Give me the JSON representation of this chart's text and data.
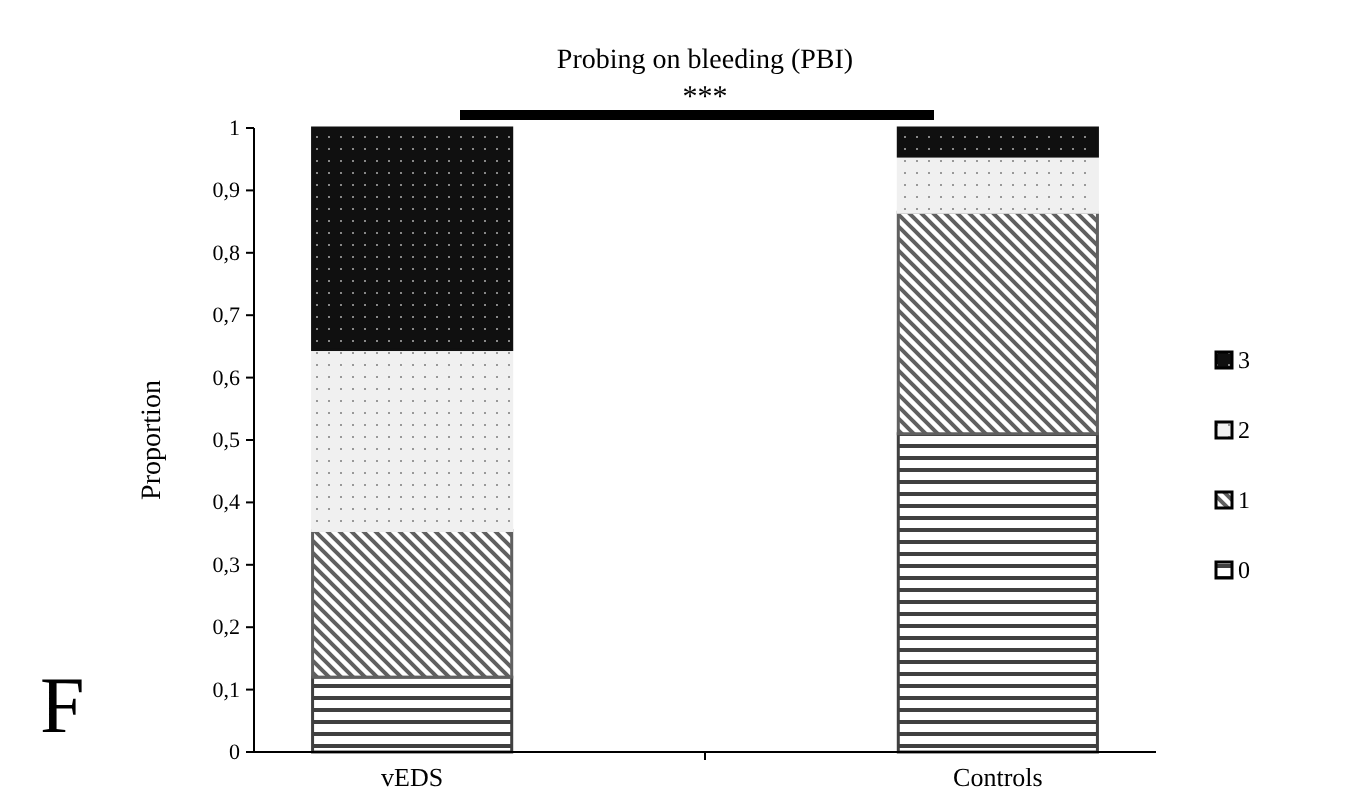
{
  "chart_data": {
    "type": "bar",
    "title": "Probing on bleeding (PBI)",
    "ylabel": "Proportion",
    "categories": [
      "vEDS",
      "Controls"
    ],
    "stacked": true,
    "series": [
      {
        "name": "0",
        "color": "#404040",
        "values": [
          0.12,
          0.51
        ]
      },
      {
        "name": "1",
        "color": "#606060",
        "values": [
          0.235,
          0.355
        ]
      },
      {
        "name": "2",
        "color": "#f0f0f0",
        "values": [
          0.29,
          0.09
        ]
      },
      {
        "name": "3",
        "color": "#101010",
        "values": [
          0.355,
          0.045
        ]
      }
    ],
    "ylim": [
      0,
      1
    ],
    "yticks": [
      0,
      {
        "value": 0.1,
        "label": "0,1"
      },
      {
        "value": 0.2,
        "label": "0,2"
      },
      {
        "value": 0.3,
        "label": "0,3"
      },
      {
        "value": 0.4,
        "label": "0,4"
      },
      {
        "value": 0.5,
        "label": "0,5"
      },
      {
        "value": 0.6,
        "label": "0,6"
      },
      {
        "value": 0.7,
        "label": "0,7"
      },
      {
        "value": 0.8,
        "label": "0,8"
      },
      {
        "value": 0.9,
        "label": "0,9"
      },
      1
    ],
    "legend": "right",
    "grid": false,
    "annotations": [
      "***",
      "F"
    ]
  }
}
